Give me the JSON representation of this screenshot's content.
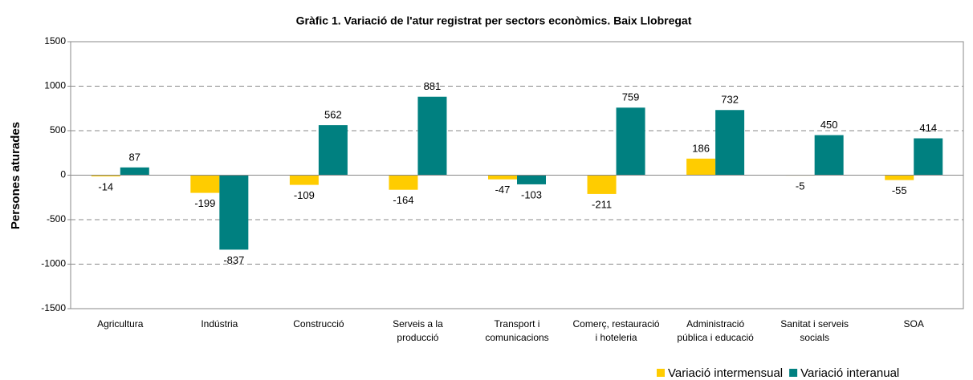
{
  "chart_data": {
    "type": "bar",
    "title": "Gràfic 1. Variació de l'atur registrat per sectors econòmics. Baix Llobregat",
    "y_label": "Persones aturades",
    "categories": [
      "Agricultura",
      "Indústria",
      "Construcció",
      "Serveis a la producció",
      "Transport i comunicacions",
      "Comerç, restauració i hoteleria",
      "Administració pública i educació",
      "Sanitat i serveis socials",
      "SOA"
    ],
    "series": [
      {
        "name": "Variació intermensual",
        "color": "#ffcc00",
        "values": [
          -14,
          -199,
          -109,
          -164,
          -47,
          -211,
          186,
          -5,
          -55
        ]
      },
      {
        "name": "Variació interanual",
        "color": "#008080",
        "values": [
          87,
          -837,
          562,
          881,
          -103,
          759,
          732,
          450,
          414
        ]
      }
    ],
    "ylim": [
      -1500,
      1500
    ],
    "yticks": [
      -1500,
      -1000,
      -500,
      0,
      500,
      1000,
      1500
    ],
    "grid": true,
    "legend": "bottom-right"
  }
}
